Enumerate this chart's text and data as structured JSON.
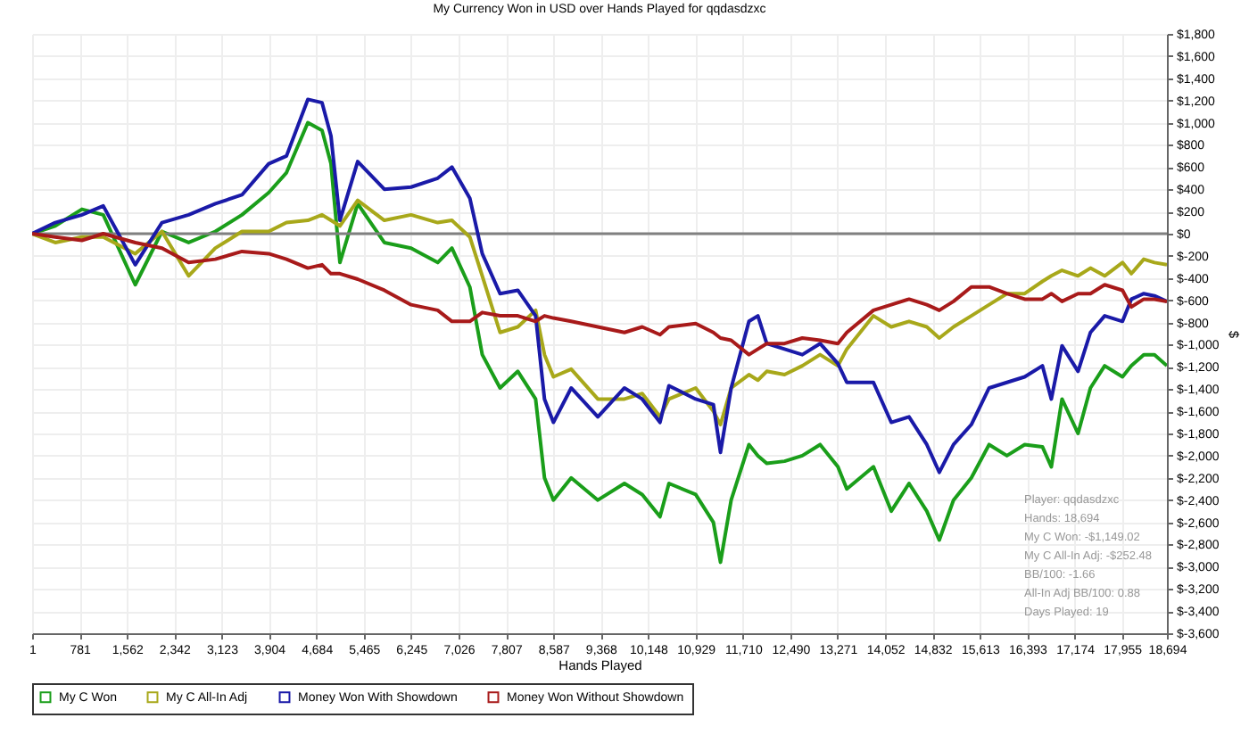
{
  "chart_data": {
    "type": "line",
    "title": "My Currency Won in USD over Hands Played for qqdasdzxc",
    "xlabel": "Hands Played",
    "ylabel": "$",
    "x": [
      1,
      382,
      821,
      1173,
      1700,
      2140,
      2579,
      3019,
      3458,
      3898,
      4191,
      4543,
      4777,
      4924,
      5071,
      5364,
      5803,
      6243,
      6682,
      6916,
      7211,
      7416,
      7709,
      8002,
      8295,
      8441,
      8588,
      8881,
      9320,
      9758,
      10051,
      10344,
      10491,
      10931,
      11223,
      11340,
      11516,
      11809,
      11956,
      12102,
      12395,
      12688,
      12981,
      13274,
      13421,
      13860,
      14153,
      14446,
      14739,
      14944,
      15179,
      15472,
      15765,
      16058,
      16351,
      16643,
      16790,
      16966,
      17230,
      17434,
      17669,
      17962,
      18108,
      18313,
      18489,
      18694
    ],
    "series": [
      {
        "name": "My C Won",
        "color": "#1a9e1a",
        "values": [
          0,
          70,
          220,
          170,
          -460,
          20,
          -80,
          20,
          170,
          370,
          550,
          1000,
          930,
          630,
          -260,
          270,
          -80,
          -130,
          -260,
          -130,
          -480,
          -1090,
          -1390,
          -1240,
          -1490,
          -2200,
          -2400,
          -2200,
          -2400,
          -2250,
          -2350,
          -2550,
          -2250,
          -2350,
          -2600,
          -2960,
          -2400,
          -1900,
          -2000,
          -2070,
          -2050,
          -2000,
          -1900,
          -2100,
          -2300,
          -2100,
          -2500,
          -2250,
          -2500,
          -2760,
          -2400,
          -2200,
          -1900,
          -2000,
          -1900,
          -1920,
          -2100,
          -1490,
          -1800,
          -1390,
          -1190,
          -1290,
          -1190,
          -1090,
          -1090,
          -1190
        ]
      },
      {
        "name": "My C All-In Adj",
        "color": "#a8a81a",
        "values": [
          0,
          -80,
          -30,
          -30,
          -180,
          20,
          -380,
          -130,
          20,
          20,
          100,
          120,
          170,
          120,
          70,
          300,
          120,
          170,
          100,
          120,
          -30,
          -380,
          -890,
          -840,
          -690,
          -1090,
          -1290,
          -1220,
          -1490,
          -1490,
          -1440,
          -1650,
          -1490,
          -1390,
          -1600,
          -1720,
          -1390,
          -1270,
          -1320,
          -1240,
          -1270,
          -1190,
          -1090,
          -1190,
          -1040,
          -740,
          -840,
          -790,
          -840,
          -940,
          -840,
          -740,
          -640,
          -540,
          -540,
          -430,
          -380,
          -330,
          -380,
          -310,
          -380,
          -260,
          -360,
          -230,
          -260,
          -280
        ]
      },
      {
        "name": "Money Won With Showdown",
        "color": "#1a1aa8",
        "values": [
          0,
          100,
          170,
          250,
          -280,
          100,
          170,
          270,
          350,
          630,
          700,
          1210,
          1180,
          880,
          120,
          650,
          400,
          420,
          500,
          600,
          320,
          -180,
          -540,
          -510,
          -740,
          -1490,
          -1700,
          -1390,
          -1650,
          -1390,
          -1490,
          -1700,
          -1370,
          -1490,
          -1540,
          -1970,
          -1390,
          -790,
          -740,
          -990,
          -1040,
          -1090,
          -990,
          -1170,
          -1340,
          -1340,
          -1700,
          -1650,
          -1900,
          -2150,
          -1900,
          -1720,
          -1390,
          -1340,
          -1290,
          -1190,
          -1490,
          -1010,
          -1240,
          -890,
          -740,
          -790,
          -590,
          -540,
          -560,
          -610
        ]
      },
      {
        "name": "Money Won Without Showdown",
        "color": "#a81a1a",
        "values": [
          0,
          -30,
          -60,
          0,
          -80,
          -130,
          -260,
          -230,
          -160,
          -180,
          -230,
          -310,
          -280,
          -360,
          -360,
          -410,
          -510,
          -640,
          -690,
          -790,
          -790,
          -710,
          -740,
          -740,
          -790,
          -740,
          -760,
          -790,
          -840,
          -890,
          -840,
          -910,
          -840,
          -810,
          -890,
          -940,
          -960,
          -1090,
          -1040,
          -990,
          -990,
          -940,
          -960,
          -990,
          -890,
          -690,
          -640,
          -590,
          -640,
          -690,
          -610,
          -480,
          -480,
          -540,
          -590,
          -590,
          -540,
          -610,
          -540,
          -540,
          -460,
          -510,
          -660,
          -590,
          -590,
          -610
        ]
      }
    ],
    "xlim": [
      1,
      18694
    ],
    "xticks": [
      1,
      781,
      {
        "value": 1562,
        "label": "1,562"
      },
      {
        "value": 2342,
        "label": "2,342"
      },
      {
        "value": 3123,
        "label": "3,123"
      },
      {
        "value": 3904,
        "label": "3,904"
      },
      {
        "value": 4684,
        "label": "4,684"
      },
      {
        "value": 5465,
        "label": "5,465"
      },
      {
        "value": 6245,
        "label": "6,245"
      },
      {
        "value": 7026,
        "label": "7,026"
      },
      {
        "value": 7807,
        "label": "7,807"
      },
      {
        "value": 8587,
        "label": "8,587"
      },
      {
        "value": 9368,
        "label": "9,368"
      },
      {
        "value": 10148,
        "label": "10,148"
      },
      {
        "value": 10929,
        "label": "10,929"
      },
      {
        "value": 11710,
        "label": "11,710"
      },
      {
        "value": 12490,
        "label": "12,490"
      },
      {
        "value": 13271,
        "label": "13,271"
      },
      {
        "value": 14052,
        "label": "14,052"
      },
      {
        "value": 14832,
        "label": "14,832"
      },
      {
        "value": 15613,
        "label": "15,613"
      },
      {
        "value": 16393,
        "label": "16,393"
      },
      {
        "value": 17174,
        "label": "17,174"
      },
      {
        "value": 17955,
        "label": "17,955"
      },
      {
        "value": 18694,
        "label": "18,694"
      }
    ],
    "ylim": [
      -3600,
      1800
    ],
    "yticks": [
      {
        "value": 1800,
        "label": "$1,800"
      },
      {
        "value": 1600,
        "label": "$1,600"
      },
      {
        "value": 1400,
        "label": "$1,400"
      },
      {
        "value": 1200,
        "label": "$1,200"
      },
      {
        "value": 1000,
        "label": "$1,000"
      },
      {
        "value": 800,
        "label": "$800"
      },
      {
        "value": 600,
        "label": "$600"
      },
      {
        "value": 400,
        "label": "$400"
      },
      {
        "value": 200,
        "label": "$200"
      },
      {
        "value": 0,
        "label": "$0"
      },
      {
        "value": -200,
        "label": "$-200"
      },
      {
        "value": -400,
        "label": "$-400"
      },
      {
        "value": -600,
        "label": "$-600"
      },
      {
        "value": -800,
        "label": "$-800"
      },
      {
        "value": -1000,
        "label": "$-1,000"
      },
      {
        "value": -1200,
        "label": "$-1,200"
      },
      {
        "value": -1400,
        "label": "$-1,400"
      },
      {
        "value": -1600,
        "label": "$-1,600"
      },
      {
        "value": -1800,
        "label": "$-1,800"
      },
      {
        "value": -2000,
        "label": "$-2,000"
      },
      {
        "value": -2200,
        "label": "$-2,200"
      },
      {
        "value": -2400,
        "label": "$-2,400"
      },
      {
        "value": -2600,
        "label": "$-2,600"
      },
      {
        "value": -2800,
        "label": "$-2,800"
      },
      {
        "value": -3000,
        "label": "$-3,000"
      },
      {
        "value": -3200,
        "label": "$-3,200"
      },
      {
        "value": -3400,
        "label": "$-3,400"
      },
      {
        "value": -3600,
        "label": "$-3,600"
      }
    ],
    "ref_lines": [
      {
        "axis": "y",
        "value": 0,
        "color": "#808080"
      }
    ],
    "annotations": [
      "Player: qqdasdzxc",
      "Hands: 18,694",
      "My C Won: -$1,149.02",
      "My C All-In Adj: -$252.48",
      "BB/100: -1.66",
      "All-In Adj BB/100: 0.88",
      "Days Played: 19"
    ],
    "grid": true,
    "legend": "bottom left"
  }
}
